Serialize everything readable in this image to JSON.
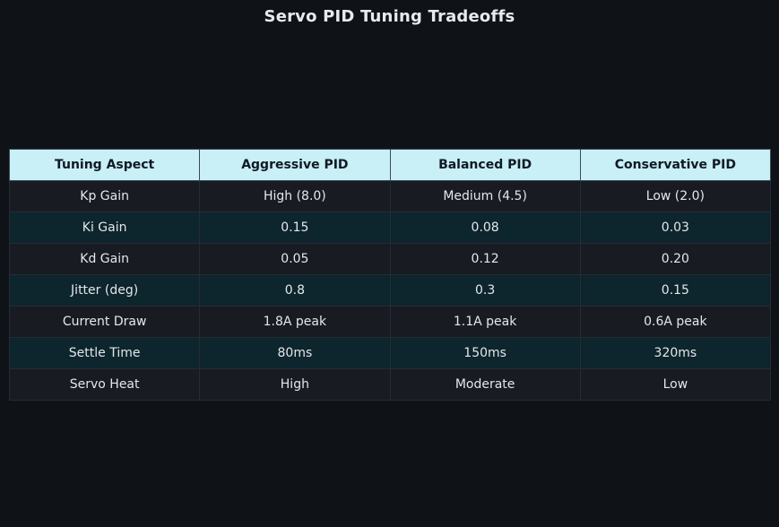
{
  "title": "Servo PID Tuning Tradeoffs",
  "chart_data": {
    "type": "table",
    "title": "Servo PID Tuning Tradeoffs",
    "columns": [
      "Tuning Aspect",
      "Aggressive PID",
      "Balanced PID",
      "Conservative PID"
    ],
    "rows": [
      [
        "Kp Gain",
        "High (8.0)",
        "Medium (4.5)",
        "Low (2.0)"
      ],
      [
        "Ki Gain",
        "0.15",
        "0.08",
        "0.03"
      ],
      [
        "Kd Gain",
        "0.05",
        "0.12",
        "0.20"
      ],
      [
        "Jitter (deg)",
        "0.8",
        "0.3",
        "0.15"
      ],
      [
        "Current Draw",
        "1.8A peak",
        "1.1A peak",
        "0.6A peak"
      ],
      [
        "Settle Time",
        "80ms",
        "150ms",
        "320ms"
      ],
      [
        "Servo Heat",
        "High",
        "Moderate",
        "Low"
      ]
    ],
    "colors": {
      "background": "#0f1317",
      "header_fill": "#c9eff7",
      "header_text": "#0f1a24",
      "row_fill_odd": "#181c22",
      "row_fill_even": "#0d252d",
      "cell_text": "#e4e7ea"
    }
  }
}
